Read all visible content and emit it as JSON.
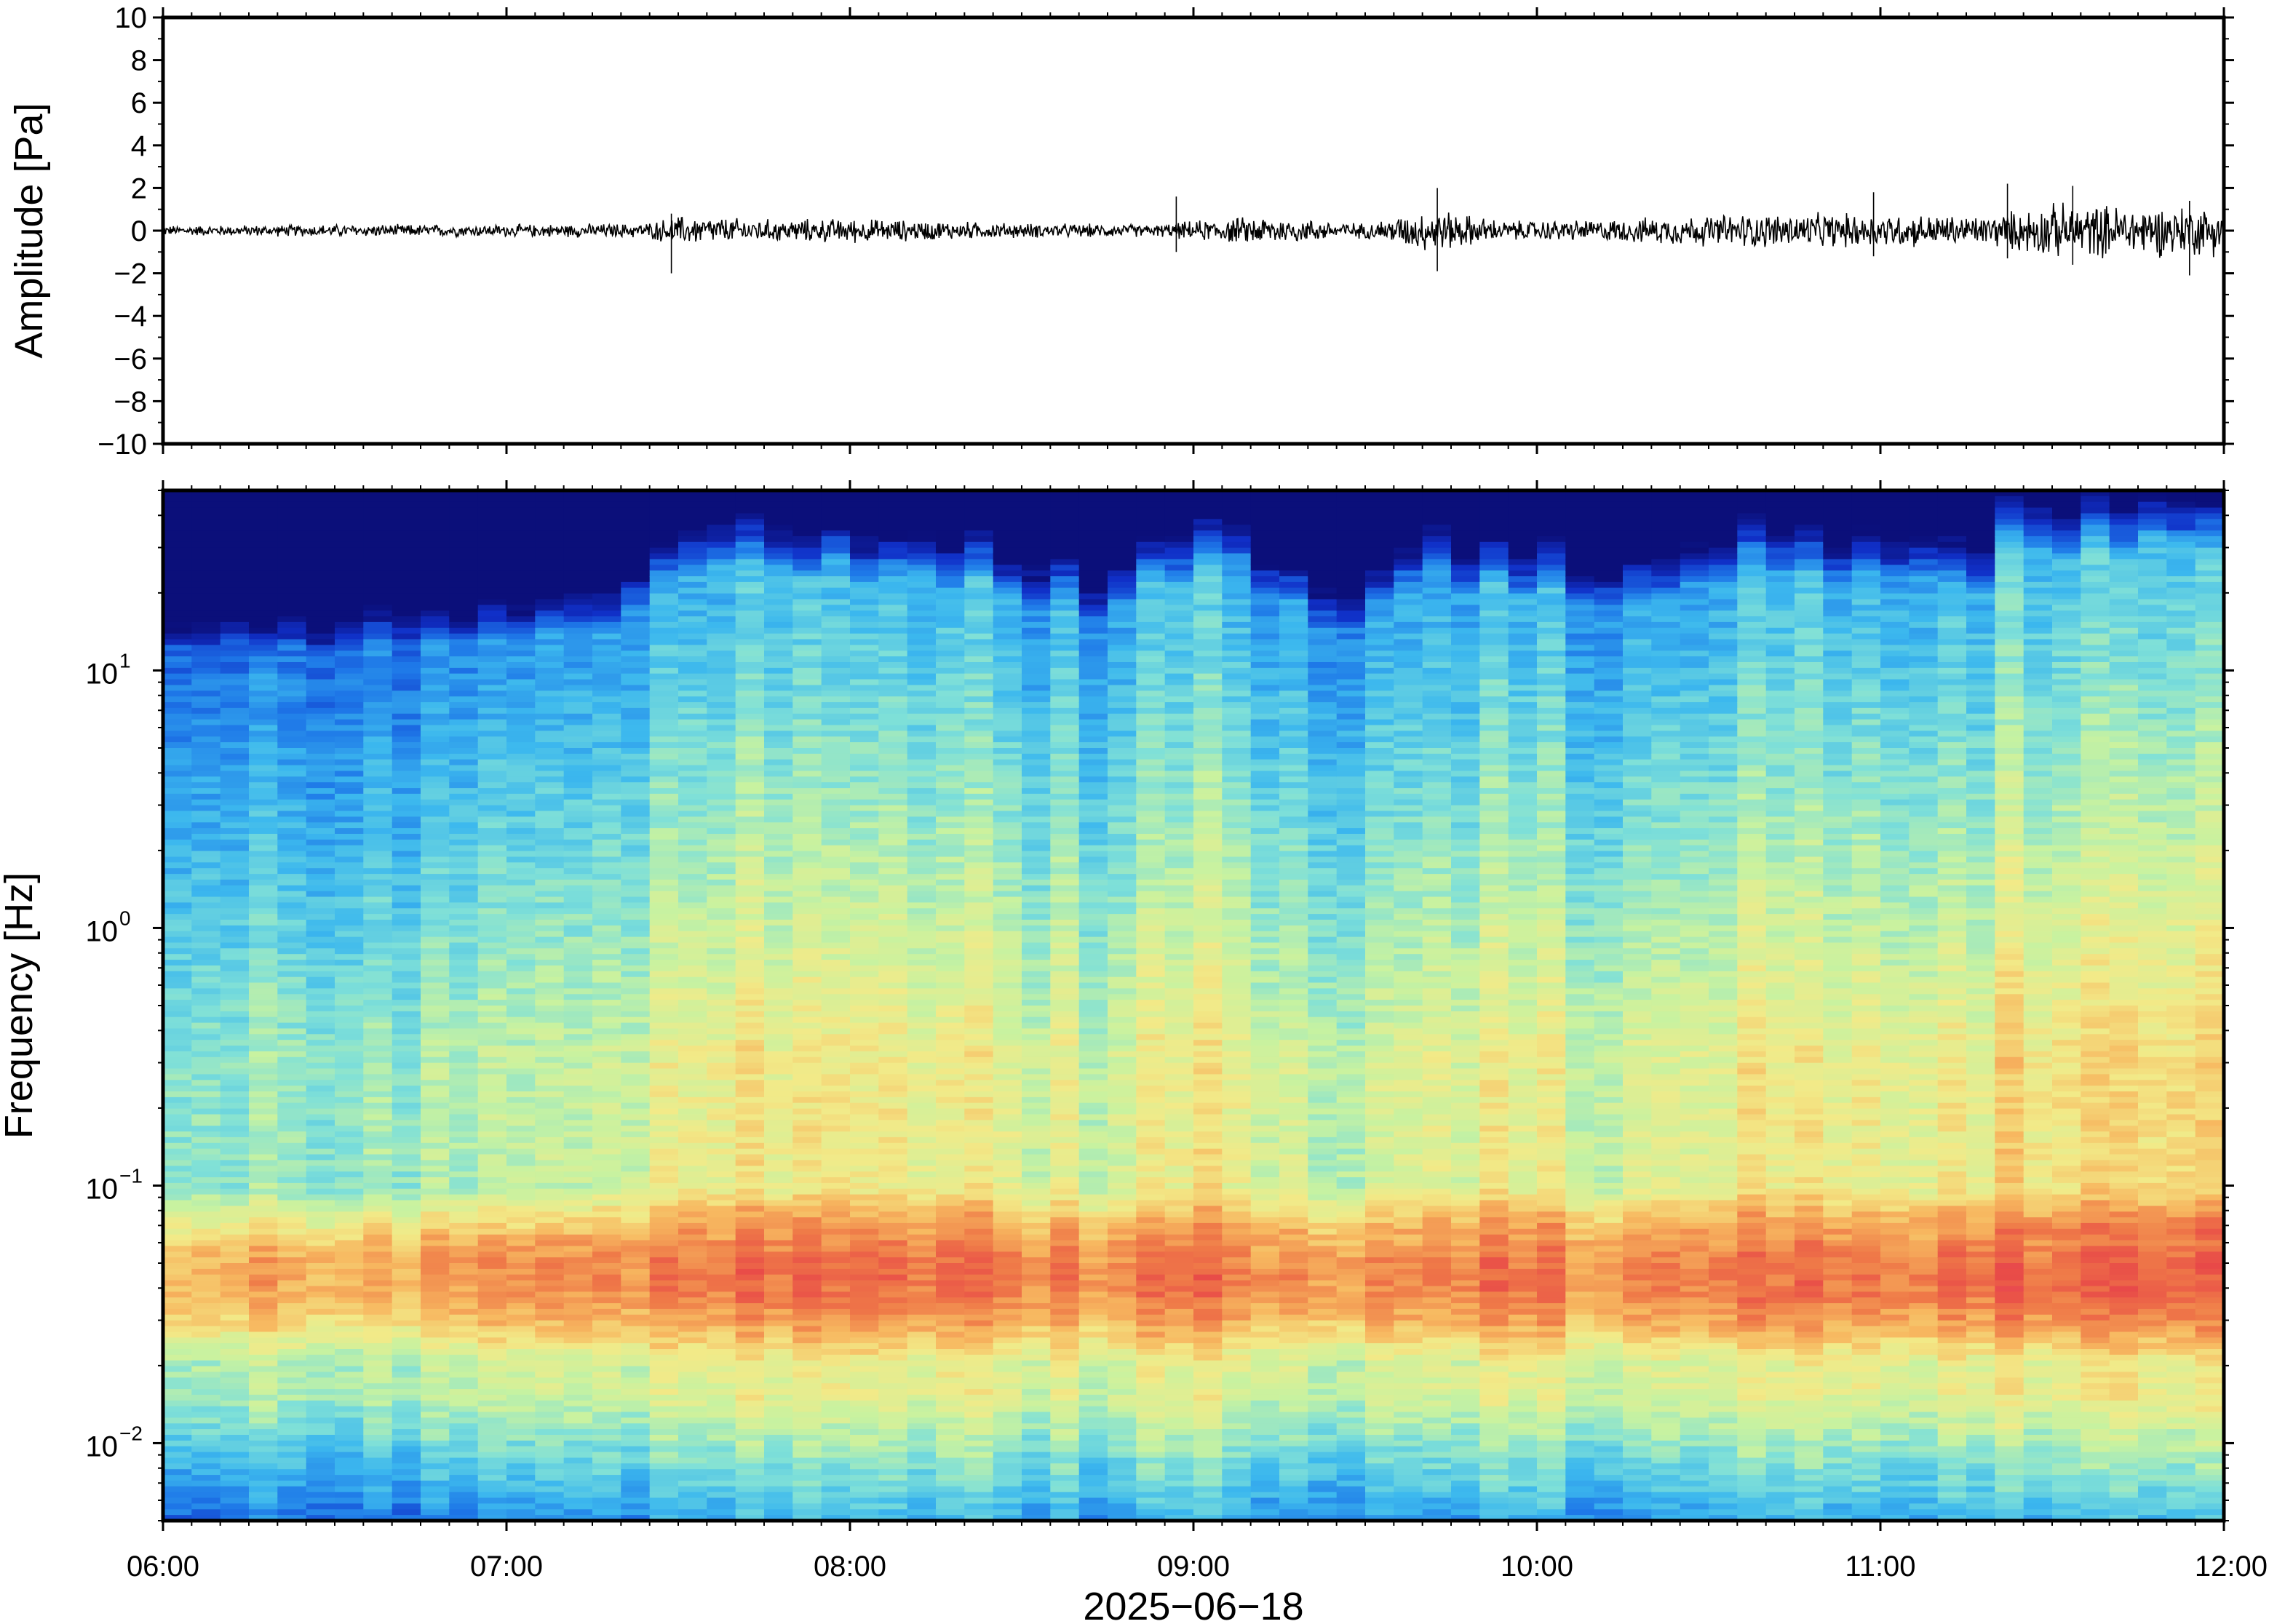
{
  "chart_data": [
    {
      "type": "line",
      "panel": "waveform",
      "title": "",
      "ylabel": "Amplitude [Pa]",
      "ylim": [
        -10,
        10
      ],
      "yticks": [
        10,
        8,
        6,
        4,
        2,
        0,
        -2,
        -4,
        -6,
        -8,
        -10
      ],
      "ytick_labels": [
        "10",
        "8",
        "6",
        "4",
        "2",
        "0",
        "−2",
        "−4",
        "−6",
        "−8",
        "−10"
      ],
      "x_range_hours": [
        6,
        12
      ],
      "envelope": [
        {
          "t": 6.0,
          "amp": 0.2
        },
        {
          "t": 6.5,
          "amp": 0.25
        },
        {
          "t": 7.0,
          "amp": 0.25
        },
        {
          "t": 7.4,
          "amp": 0.3
        },
        {
          "t": 7.5,
          "amp": 0.6
        },
        {
          "t": 7.8,
          "amp": 0.45
        },
        {
          "t": 8.0,
          "amp": 0.5
        },
        {
          "t": 8.5,
          "amp": 0.3
        },
        {
          "t": 8.9,
          "amp": 0.25
        },
        {
          "t": 9.0,
          "amp": 0.4
        },
        {
          "t": 9.2,
          "amp": 0.6
        },
        {
          "t": 9.5,
          "amp": 0.3
        },
        {
          "t": 9.7,
          "amp": 0.9
        },
        {
          "t": 9.9,
          "amp": 0.4
        },
        {
          "t": 10.2,
          "amp": 0.45
        },
        {
          "t": 10.6,
          "amp": 0.7
        },
        {
          "t": 11.0,
          "amp": 0.7
        },
        {
          "t": 11.3,
          "amp": 0.6
        },
        {
          "t": 11.5,
          "amp": 1.1
        },
        {
          "t": 12.0,
          "amp": 1.0
        }
      ],
      "spikes": [
        {
          "t": 7.48,
          "max": 0.8,
          "min": -2.0
        },
        {
          "t": 8.95,
          "max": 1.6,
          "min": -1.0
        },
        {
          "t": 9.71,
          "max": 2.0,
          "min": -1.9
        },
        {
          "t": 10.98,
          "max": 1.8,
          "min": -1.2
        },
        {
          "t": 11.37,
          "max": 2.2,
          "min": -1.3
        },
        {
          "t": 11.56,
          "max": 2.1,
          "min": -1.6
        },
        {
          "t": 11.9,
          "max": 1.4,
          "min": -2.1
        }
      ],
      "color": "#000000"
    },
    {
      "type": "heatmap",
      "panel": "spectrogram",
      "title": "",
      "ylabel": "Frequency [Hz]",
      "yscale": "log",
      "ylim": [
        0.005,
        50
      ],
      "yticks": [
        0.01,
        0.1,
        1,
        10
      ],
      "ytick_labels": [
        {
          "base": "10",
          "exp": "−2"
        },
        {
          "base": "10",
          "exp": "−1"
        },
        {
          "base": "10",
          "exp": "0"
        },
        {
          "base": "10",
          "exp": "1"
        }
      ],
      "xlabel": "2025−06−18",
      "xlim": [
        "06:00",
        "12:00"
      ],
      "xticks": [
        "06:00",
        "07:00",
        "08:00",
        "09:00",
        "10:00",
        "11:00",
        "12:00"
      ],
      "x_tick_hours": [
        6,
        7,
        8,
        9,
        10,
        11,
        12
      ],
      "n_columns": 72,
      "colormap": [
        "#0b0f7a",
        "#1030c8",
        "#1e78e8",
        "#3cb8ee",
        "#7fe0d8",
        "#c8f2a0",
        "#f2ea88",
        "#f7b860",
        "#ef7a48",
        "#e84848",
        "#f06a8a"
      ],
      "activity_profile": [
        {
          "t": 6.0,
          "level": 0.15
        },
        {
          "t": 7.0,
          "level": 0.2
        },
        {
          "t": 7.35,
          "level": 0.25
        },
        {
          "t": 7.4,
          "level": 0.55
        },
        {
          "t": 8.0,
          "level": 0.55
        },
        {
          "t": 8.5,
          "level": 0.45
        },
        {
          "t": 8.75,
          "level": 0.3
        },
        {
          "t": 8.9,
          "level": 0.5
        },
        {
          "t": 9.15,
          "level": 0.6
        },
        {
          "t": 9.3,
          "level": 0.35
        },
        {
          "t": 9.5,
          "level": 0.25
        },
        {
          "t": 9.65,
          "level": 0.6
        },
        {
          "t": 9.8,
          "level": 0.5
        },
        {
          "t": 10.2,
          "level": 0.4
        },
        {
          "t": 10.6,
          "level": 0.55
        },
        {
          "t": 11.0,
          "level": 0.5
        },
        {
          "t": 11.3,
          "level": 0.45
        },
        {
          "t": 11.4,
          "level": 0.7
        },
        {
          "t": 12.0,
          "level": 0.65
        }
      ]
    }
  ]
}
